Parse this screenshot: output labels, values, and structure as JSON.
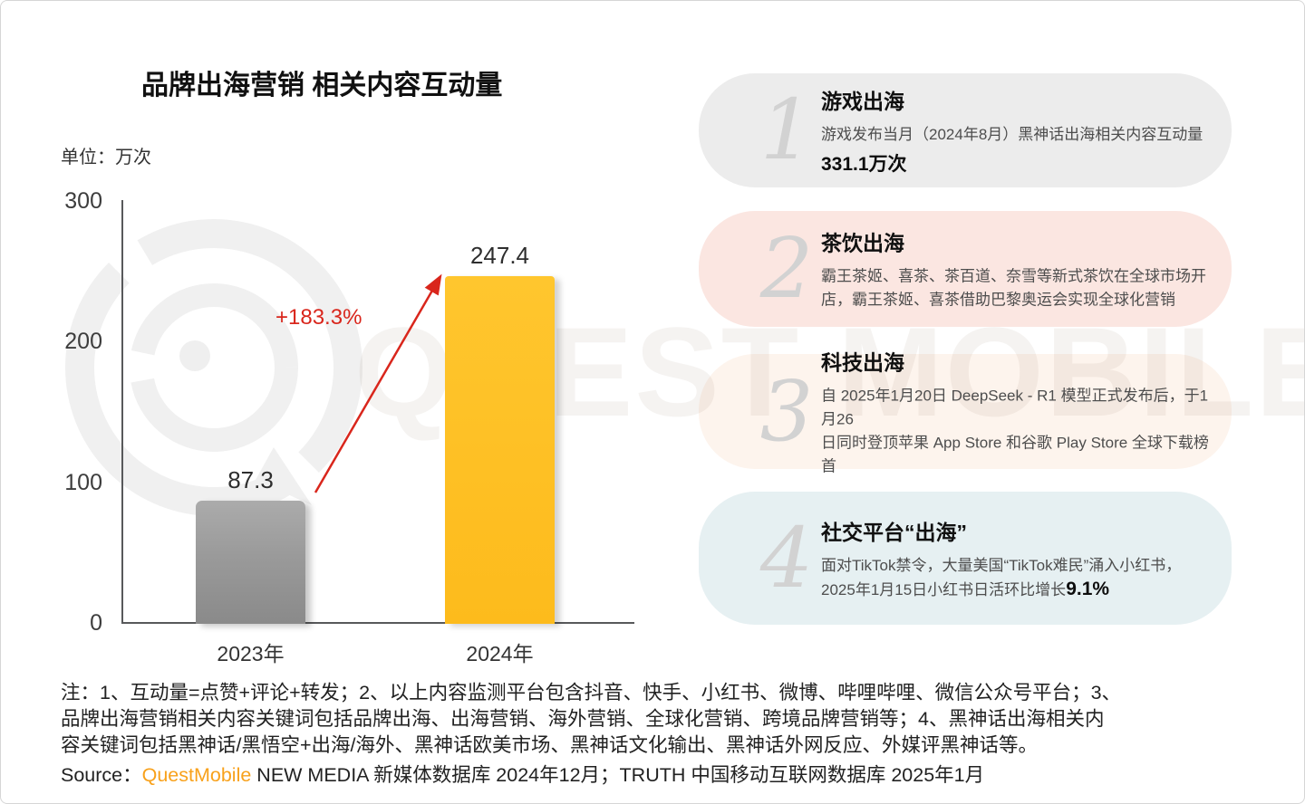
{
  "page": {
    "title": "品牌出海营销 相关内容互动量",
    "unit_label": "单位：万次"
  },
  "chart_data": {
    "type": "bar",
    "title": "品牌出海营销 相关内容互动量",
    "unit": "万次",
    "categories": [
      "2023年",
      "2024年"
    ],
    "values": [
      87.3,
      247.4
    ],
    "value_labels": [
      "87.3",
      "247.4"
    ],
    "growth_label": "+183.3%",
    "ylim": [
      0,
      300
    ],
    "yticks": [
      0,
      100,
      200,
      300
    ],
    "grid": false,
    "legend": null,
    "bar_colors": [
      "#9a9a9a",
      "#fdbb1c"
    ],
    "growth_color": "#d9261c"
  },
  "cards": [
    {
      "number": "1",
      "title": "游戏出海",
      "lines": [
        "游戏发布当月（2024年8月）黑神话出海相关内容互动量"
      ],
      "highlight": "331.1万次",
      "bg": "#ececec"
    },
    {
      "number": "2",
      "title": "茶饮出海",
      "lines": [
        "霸王茶姬、喜茶、茶百道、奈雪等新式茶饮在全球市场开",
        "店，霸王茶姬、喜茶借助巴黎奥运会实现全球化营销"
      ],
      "highlight": "",
      "bg": "#fbe6e1"
    },
    {
      "number": "3",
      "title": "科技出海",
      "lines": [
        "自 2025年1月20日 DeepSeek - R1 模型正式发布后，于1月26",
        "日同时登顶苹果 App Store 和谷歌 Play Store 全球下载榜首"
      ],
      "highlight": "",
      "bg": "#fdf4ed"
    },
    {
      "number": "4",
      "title": "社交平台“出海”",
      "lines": [
        "面对TikTok禁令，大量美国“TikTok难民”涌入小红书，",
        "2025年1月15日小红书日活环比增长"
      ],
      "highlight": "9.1%",
      "bg": "#e6f0f2"
    }
  ],
  "footnote_lines": [
    "注：1、互动量=点赞+评论+转发；2、以上内容监测平台包含抖音、快手、小红书、微博、哔哩哔哩、微信公众号平台；3、",
    "品牌出海营销相关内容关键词包括品牌出海、出海营销、海外营销、全球化营销、跨境品牌营销等；4、黑神话出海相关内",
    "容关键词包括黑神话/黑悟空+出海/海外、黑神话欧美市场、黑神话文化输出、黑神话外网反应、外媒评黑神话等。"
  ],
  "source": {
    "prefix": "Source：",
    "brand": "QuestMobile",
    "rest": " NEW MEDIA 新媒体数据库 2024年12月；TRUTH 中国移动互联网数据库 2025年1月",
    "brand_color": "#f8a11b"
  },
  "watermark": {
    "text": "QUEST MOBILE"
  }
}
